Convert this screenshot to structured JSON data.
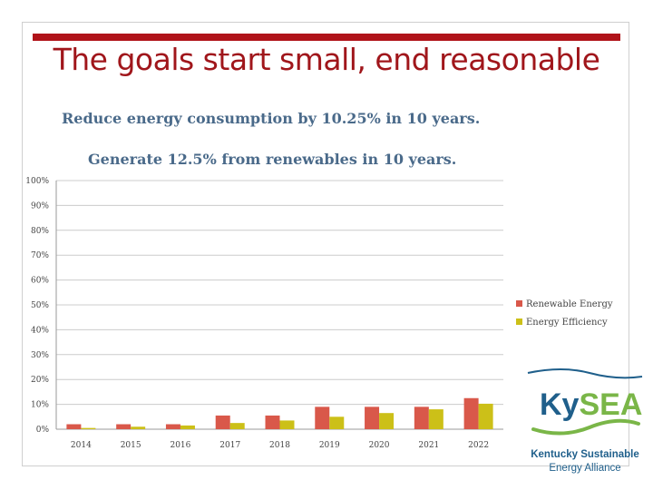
{
  "slide": {
    "title": "The goals start small, end reasonable",
    "headline_1": "Reduce energy consumption by 10.25% in 10 years.",
    "headline_2": "Generate 12.5% from renewables in 10 years."
  },
  "colors": {
    "title": "#a0161b",
    "title_bar": "#b01319",
    "renewable": "#d9584a",
    "efficiency": "#ccc018",
    "grid": "#cccccc",
    "logo_blue": "#1f5f8b",
    "logo_green": "#7ab648"
  },
  "chart_data": {
    "type": "bar",
    "categories": [
      "2014",
      "2015",
      "2016",
      "2017",
      "2018",
      "2019",
      "2020",
      "2021",
      "2022"
    ],
    "series": [
      {
        "name": "Renewable Energy",
        "values": [
          2.0,
          2.0,
          2.0,
          5.5,
          5.5,
          9.0,
          9.0,
          9.0,
          12.5
        ]
      },
      {
        "name": "Energy Efficiency",
        "values": [
          0.5,
          1.0,
          1.5,
          2.5,
          3.5,
          5.0,
          6.5,
          8.0,
          10.25
        ]
      }
    ],
    "yticks": [
      "0%",
      "10%",
      "20%",
      "30%",
      "40%",
      "50%",
      "60%",
      "70%",
      "80%",
      "90%",
      "100%"
    ],
    "ylim": [
      0,
      100
    ],
    "grid": true,
    "legend": "right"
  },
  "logo": {
    "name": "KySEA",
    "name_ky": "Ky",
    "name_sea": "SEA",
    "line1": "Kentucky Sustainable",
    "line2": "Energy Alliance"
  }
}
